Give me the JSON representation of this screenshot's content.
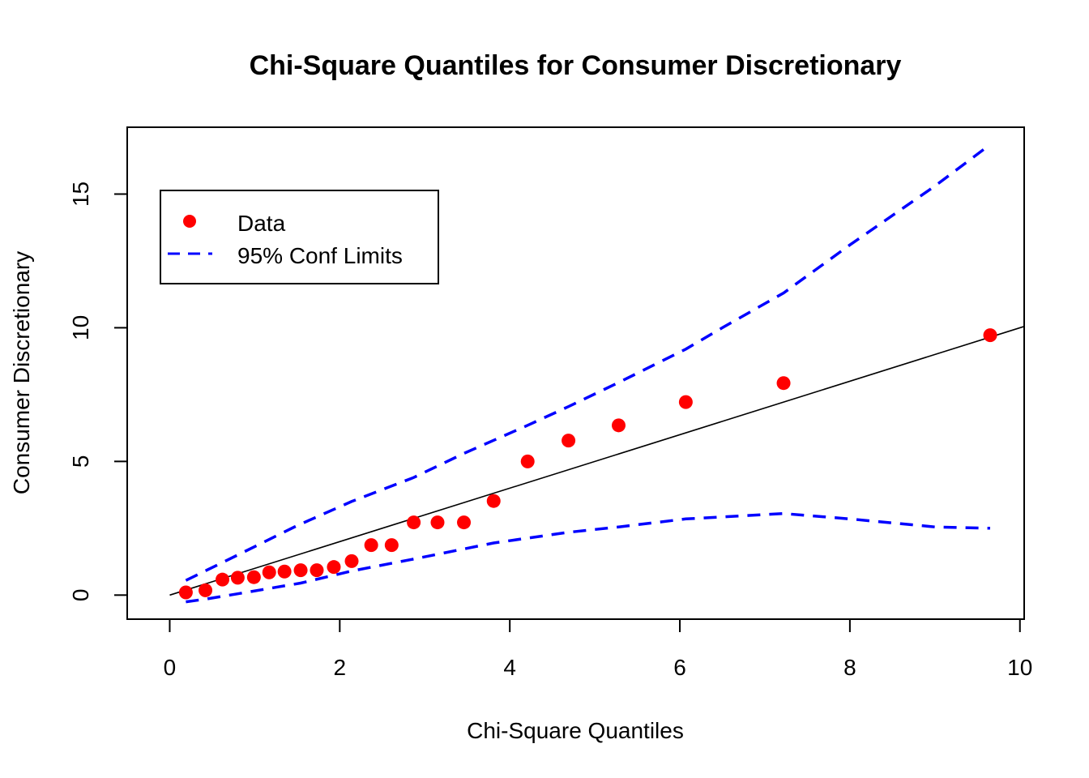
{
  "chart_data": {
    "type": "scatter",
    "title": "Chi-Square Quantiles for Consumer Discretionary",
    "xlabel": "Chi-Square Quantiles",
    "ylabel": "Consumer Discretionary",
    "xlim": [
      -0.5,
      10.05
    ],
    "ylim": [
      -0.9,
      17.5
    ],
    "x_ticks": [
      0,
      2,
      4,
      6,
      8,
      10
    ],
    "y_ticks": [
      0,
      5,
      10,
      15
    ],
    "grid": false,
    "legend_position": "top-left",
    "series": [
      {
        "name": "Data",
        "kind": "points",
        "color": "#ff0000",
        "x": [
          0.19,
          0.42,
          0.62,
          0.8,
          0.99,
          1.17,
          1.35,
          1.54,
          1.73,
          1.93,
          2.14,
          2.37,
          2.61,
          2.87,
          3.15,
          3.46,
          3.81,
          4.21,
          4.69,
          5.28,
          6.07,
          7.22,
          9.65
        ],
        "y": [
          0.1,
          0.18,
          0.58,
          0.65,
          0.67,
          0.85,
          0.88,
          0.93,
          0.93,
          1.05,
          1.27,
          1.87,
          1.87,
          2.72,
          2.72,
          2.72,
          3.52,
          5.0,
          5.78,
          6.35,
          7.22,
          7.93,
          9.72
        ]
      },
      {
        "name": "95% Conf Limits",
        "kind": "dashed-line",
        "color": "#0000ff",
        "x": [
          0.19,
          0.8,
          1.5,
          2.14,
          2.87,
          3.46,
          4.21,
          4.69,
          5.28,
          6.07,
          6.5,
          7.22,
          8.0,
          9.0,
          9.65
        ],
        "y": [
          0.55,
          1.5,
          2.6,
          3.5,
          4.4,
          5.3,
          6.35,
          7.05,
          7.95,
          9.2,
          10.0,
          11.3,
          13.1,
          15.3,
          16.85
        ]
      },
      {
        "name": "95% Conf Limits (lower)",
        "kind": "dashed-line",
        "color": "#0000ff",
        "x": [
          0.19,
          0.42,
          0.8,
          1.17,
          1.54,
          2.14,
          2.87,
          3.81,
          4.69,
          5.28,
          6.07,
          7.22,
          8.0,
          9.0,
          9.65
        ],
        "y": [
          -0.25,
          -0.15,
          0.05,
          0.25,
          0.45,
          0.9,
          1.35,
          1.95,
          2.35,
          2.55,
          2.85,
          3.05,
          2.85,
          2.55,
          2.5
        ]
      },
      {
        "name": "Reference line",
        "kind": "solid-line",
        "color": "#000000",
        "x": [
          0,
          10.05
        ],
        "y": [
          0,
          10.05
        ]
      }
    ],
    "legend": {
      "items": [
        {
          "label": "Data",
          "symbol": "point",
          "color": "#ff0000"
        },
        {
          "label": "95% Conf Limits",
          "symbol": "dashed-line",
          "color": "#0000ff"
        }
      ]
    }
  }
}
